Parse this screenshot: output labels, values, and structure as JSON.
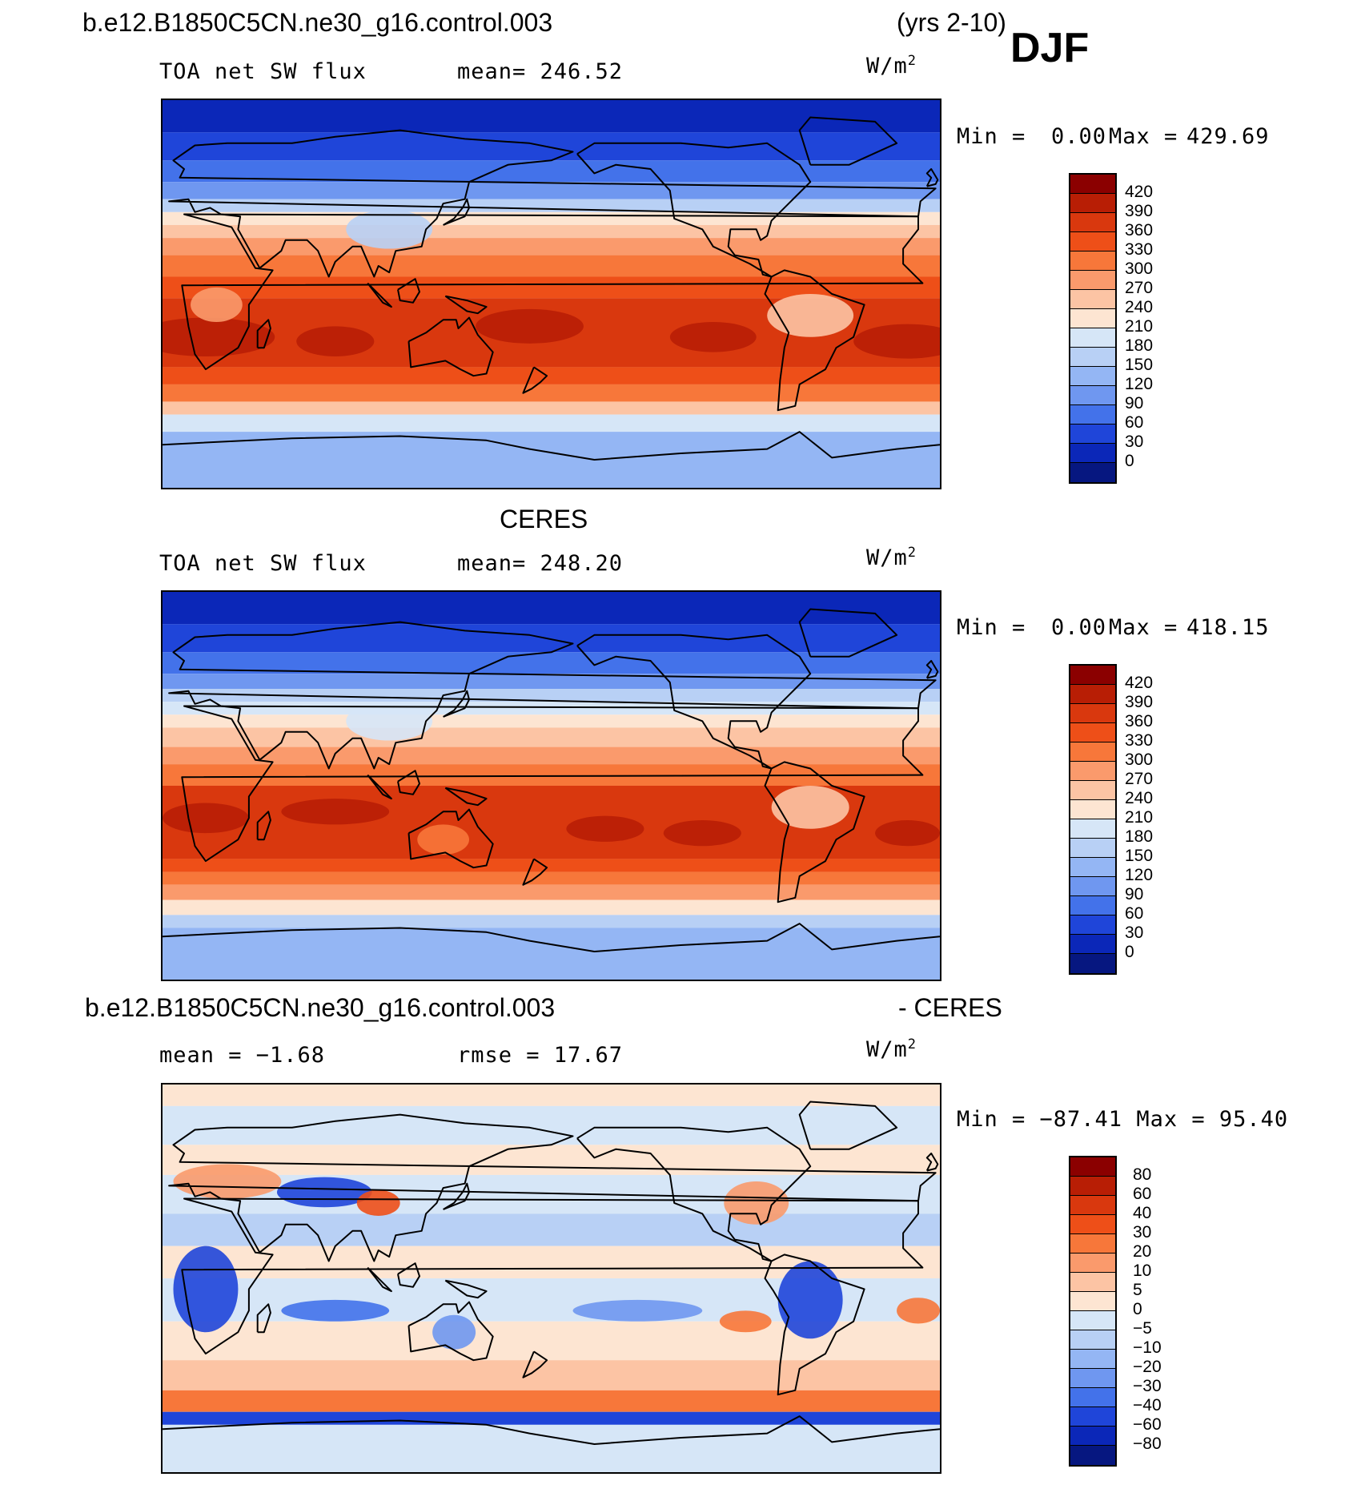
{
  "header": {
    "case_name": "b.e12.B1850C5CN.ne30_g16.control.003",
    "years": "(yrs 2-10)",
    "season": "DJF"
  },
  "panel1": {
    "var_label": "TOA net SW flux",
    "mean_text": "mean= 246.52",
    "units": "W/m",
    "units_exp": "2",
    "min_text": "Min =",
    "min_value": "0.00",
    "max_text": "Max =",
    "max_value": "429.69",
    "colorbar_labels": [
      "420",
      "390",
      "360",
      "330",
      "300",
      "270",
      "240",
      "210",
      "180",
      "150",
      "120",
      "90",
      "60",
      "30",
      "0"
    ],
    "colorbar_colors": [
      "#8b0000",
      "#b81e05",
      "#d9380e",
      "#ee4f18",
      "#f7773a",
      "#fa9a6c",
      "#fcc4a4",
      "#fde5d2",
      "#d6e6f7",
      "#b8d0f5",
      "#94b6f4",
      "#6f97f0",
      "#4372ea",
      "#1f45d9",
      "#0b27b8",
      "#061780"
    ]
  },
  "panel2": {
    "title": "CERES",
    "var_label": "TOA net SW flux",
    "mean_text": "mean= 248.20",
    "units": "W/m",
    "units_exp": "2",
    "min_text": "Min =",
    "min_value": "0.00",
    "max_text": "Max =",
    "max_value": "418.15",
    "colorbar_labels": [
      "420",
      "390",
      "360",
      "330",
      "300",
      "270",
      "240",
      "210",
      "180",
      "150",
      "120",
      "90",
      "60",
      "30",
      "0"
    ],
    "colorbar_colors": [
      "#8b0000",
      "#b81e05",
      "#d9380e",
      "#ee4f18",
      "#f7773a",
      "#fa9a6c",
      "#fcc4a4",
      "#fde5d2",
      "#d6e6f7",
      "#b8d0f5",
      "#94b6f4",
      "#6f97f0",
      "#4372ea",
      "#1f45d9",
      "#0b27b8",
      "#061780"
    ]
  },
  "panel3": {
    "title_left": "b.e12.B1850C5CN.ne30_g16.control.003",
    "title_right": "- CERES",
    "mean_text": "mean =  −1.68",
    "rmse_text": "rmse =  17.67",
    "units": "W/m",
    "units_exp": "2",
    "minmax_text": "Min = −87.41 Max =  95.40",
    "colorbar_labels": [
      "80",
      "60",
      "40",
      "30",
      "20",
      "10",
      "5",
      "0",
      "−5",
      "−10",
      "−20",
      "−30",
      "−40",
      "−60",
      "−80"
    ],
    "colorbar_colors": [
      "#8b0000",
      "#b81e05",
      "#d9380e",
      "#ee4f18",
      "#f7773a",
      "#fa9a6c",
      "#fcc4a4",
      "#fde5d2",
      "#d6e6f7",
      "#b8d0f5",
      "#94b6f4",
      "#6f97f0",
      "#4372ea",
      "#1f45d9",
      "#0b27b8",
      "#061780"
    ]
  },
  "maps": [
    {
      "name": "model",
      "bands": [
        {
          "lat_top": 90,
          "lat_bottom": 75,
          "color": "#0b27b8"
        },
        {
          "lat_top": 75,
          "lat_bottom": 62,
          "color": "#1f45d9"
        },
        {
          "lat_top": 62,
          "lat_bottom": 52,
          "color": "#4372ea"
        },
        {
          "lat_top": 52,
          "lat_bottom": 44,
          "color": "#6f97f0"
        },
        {
          "lat_top": 44,
          "lat_bottom": 38,
          "color": "#b8d0f5"
        },
        {
          "lat_top": 38,
          "lat_bottom": 32,
          "color": "#fde5d2"
        },
        {
          "lat_top": 32,
          "lat_bottom": 26,
          "color": "#fcc4a4"
        },
        {
          "lat_top": 26,
          "lat_bottom": 18,
          "color": "#fa9a6c"
        },
        {
          "lat_top": 18,
          "lat_bottom": 8,
          "color": "#f7773a"
        },
        {
          "lat_top": 8,
          "lat_bottom": -2,
          "color": "#ee4f18"
        },
        {
          "lat_top": -2,
          "lat_bottom": -34,
          "color": "#d9380e"
        },
        {
          "lat_top": -34,
          "lat_bottom": -42,
          "color": "#ee4f18"
        },
        {
          "lat_top": -42,
          "lat_bottom": -50,
          "color": "#f7773a"
        },
        {
          "lat_top": -50,
          "lat_bottom": -56,
          "color": "#fcc4a4"
        },
        {
          "lat_top": -56,
          "lat_bottom": -64,
          "color": "#d6e6f7"
        },
        {
          "lat_top": -64,
          "lat_bottom": -90,
          "color": "#94b6f4"
        }
      ],
      "blobs": [
        {
          "lon": 20,
          "lat": -20,
          "rx": 32,
          "ry": 9,
          "color": "#b81e05"
        },
        {
          "lon": 80,
          "lat": -22,
          "rx": 18,
          "ry": 7,
          "color": "#b81e05"
        },
        {
          "lon": 170,
          "lat": -15,
          "rx": 25,
          "ry": 8,
          "color": "#b81e05"
        },
        {
          "lon": 255,
          "lat": -20,
          "rx": 20,
          "ry": 7,
          "color": "#b81e05"
        },
        {
          "lon": 345,
          "lat": -22,
          "rx": 25,
          "ry": 8,
          "color": "#b81e05"
        },
        {
          "lon": 300,
          "lat": -10,
          "rx": 20,
          "ry": 10,
          "color": "#fcc4a4"
        },
        {
          "lon": 25,
          "lat": -5,
          "rx": 12,
          "ry": 8,
          "color": "#fa9a6c"
        },
        {
          "lon": 105,
          "lat": 30,
          "rx": 20,
          "ry": 9,
          "color": "#b8d0f5"
        }
      ]
    },
    {
      "name": "ceres",
      "bands": [
        {
          "lat_top": 90,
          "lat_bottom": 75,
          "color": "#0b27b8"
        },
        {
          "lat_top": 75,
          "lat_bottom": 62,
          "color": "#1f45d9"
        },
        {
          "lat_top": 62,
          "lat_bottom": 52,
          "color": "#4372ea"
        },
        {
          "lat_top": 52,
          "lat_bottom": 45,
          "color": "#6f97f0"
        },
        {
          "lat_top": 45,
          "lat_bottom": 39,
          "color": "#b8d0f5"
        },
        {
          "lat_top": 39,
          "lat_bottom": 33,
          "color": "#d6e6f7"
        },
        {
          "lat_top": 33,
          "lat_bottom": 27,
          "color": "#fde5d2"
        },
        {
          "lat_top": 27,
          "lat_bottom": 18,
          "color": "#fcc4a4"
        },
        {
          "lat_top": 18,
          "lat_bottom": 10,
          "color": "#fa9a6c"
        },
        {
          "lat_top": 10,
          "lat_bottom": 0,
          "color": "#f7773a"
        },
        {
          "lat_top": 0,
          "lat_bottom": -34,
          "color": "#d9380e"
        },
        {
          "lat_top": -34,
          "lat_bottom": -40,
          "color": "#ee4f18"
        },
        {
          "lat_top": -40,
          "lat_bottom": -46,
          "color": "#f7773a"
        },
        {
          "lat_top": -46,
          "lat_bottom": -53,
          "color": "#fa9a6c"
        },
        {
          "lat_top": -53,
          "lat_bottom": -60,
          "color": "#fde5d2"
        },
        {
          "lat_top": -60,
          "lat_bottom": -66,
          "color": "#b8d0f5"
        },
        {
          "lat_top": -66,
          "lat_bottom": -90,
          "color": "#94b6f4"
        }
      ],
      "blobs": [
        {
          "lon": 20,
          "lat": -15,
          "rx": 20,
          "ry": 7,
          "color": "#b81e05"
        },
        {
          "lon": 80,
          "lat": -12,
          "rx": 25,
          "ry": 6,
          "color": "#b81e05"
        },
        {
          "lon": 205,
          "lat": -20,
          "rx": 18,
          "ry": 6,
          "color": "#b81e05"
        },
        {
          "lon": 250,
          "lat": -22,
          "rx": 18,
          "ry": 6,
          "color": "#b81e05"
        },
        {
          "lon": 345,
          "lat": -22,
          "rx": 15,
          "ry": 6,
          "color": "#b81e05"
        },
        {
          "lon": 300,
          "lat": -10,
          "rx": 18,
          "ry": 10,
          "color": "#fcc4a4"
        },
        {
          "lon": 130,
          "lat": -25,
          "rx": 12,
          "ry": 7,
          "color": "#f7773a"
        },
        {
          "lon": 105,
          "lat": 30,
          "rx": 20,
          "ry": 9,
          "color": "#d6e6f7"
        }
      ]
    },
    {
      "name": "difference",
      "bands": [
        {
          "lat_top": 90,
          "lat_bottom": 80,
          "color": "#fde5d2"
        },
        {
          "lat_top": 80,
          "lat_bottom": 62,
          "color": "#d6e6f7"
        },
        {
          "lat_top": 62,
          "lat_bottom": 48,
          "color": "#fde5d2"
        },
        {
          "lat_top": 48,
          "lat_bottom": 30,
          "color": "#d6e6f7"
        },
        {
          "lat_top": 30,
          "lat_bottom": 15,
          "color": "#b8d0f5"
        },
        {
          "lat_top": 15,
          "lat_bottom": 0,
          "color": "#fde5d2"
        },
        {
          "lat_top": 0,
          "lat_bottom": -20,
          "color": "#d6e6f7"
        },
        {
          "lat_top": -20,
          "lat_bottom": -38,
          "color": "#fde5d2"
        },
        {
          "lat_top": -38,
          "lat_bottom": -52,
          "color": "#fcc4a4"
        },
        {
          "lat_top": -52,
          "lat_bottom": -62,
          "color": "#f7773a"
        },
        {
          "lat_top": -62,
          "lat_bottom": -68,
          "color": "#1f45d9"
        },
        {
          "lat_top": -68,
          "lat_bottom": -90,
          "color": "#d6e6f7"
        }
      ],
      "blobs": [
        {
          "lon": 75,
          "lat": 40,
          "rx": 22,
          "ry": 7,
          "color": "#1f45d9"
        },
        {
          "lon": 100,
          "lat": 35,
          "rx": 10,
          "ry": 6,
          "color": "#ee4f18"
        },
        {
          "lon": 20,
          "lat": -5,
          "rx": 15,
          "ry": 20,
          "color": "#1f45d9"
        },
        {
          "lon": 300,
          "lat": -10,
          "rx": 15,
          "ry": 18,
          "color": "#1f45d9"
        },
        {
          "lon": 270,
          "lat": -20,
          "rx": 12,
          "ry": 5,
          "color": "#f7773a"
        },
        {
          "lon": 350,
          "lat": -15,
          "rx": 10,
          "ry": 6,
          "color": "#f7773a"
        },
        {
          "lon": 220,
          "lat": -15,
          "rx": 30,
          "ry": 5,
          "color": "#6f97f0"
        },
        {
          "lon": 80,
          "lat": -15,
          "rx": 25,
          "ry": 5,
          "color": "#4372ea"
        },
        {
          "lon": 135,
          "lat": -25,
          "rx": 10,
          "ry": 8,
          "color": "#6f97f0"
        },
        {
          "lon": 275,
          "lat": 35,
          "rx": 15,
          "ry": 10,
          "color": "#fa9a6c"
        },
        {
          "lon": 30,
          "lat": 45,
          "rx": 25,
          "ry": 8,
          "color": "#fa9a6c"
        }
      ]
    }
  ]
}
